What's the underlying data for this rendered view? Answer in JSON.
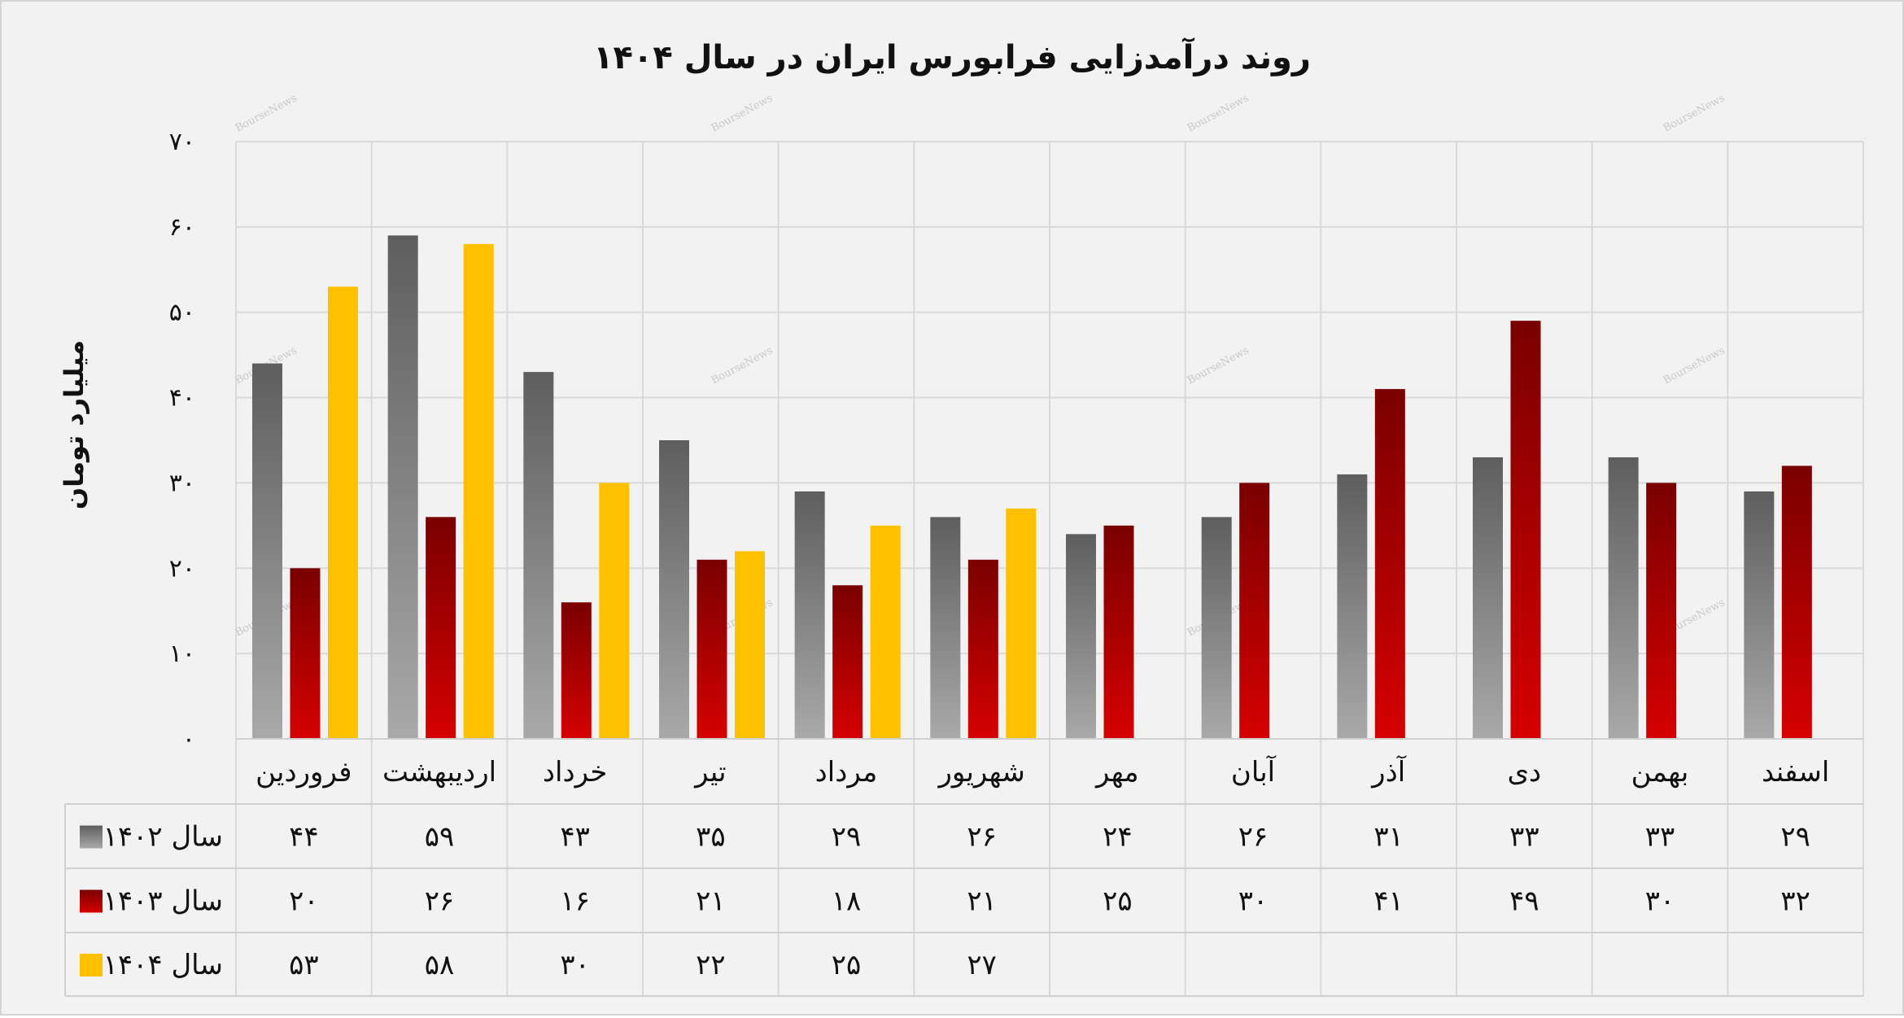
{
  "chart_data": {
    "type": "bar",
    "title": "روند درآمدزایی فرابورس ایران در سال ۱۴۰۴",
    "ylabel": "میلیارد تومان",
    "xlabel": "",
    "ylim": [
      0,
      70
    ],
    "yticks": [
      "۰",
      "۱۰",
      "۲۰",
      "۳۰",
      "۴۰",
      "۵۰",
      "۶۰",
      "۷۰"
    ],
    "categories": [
      "فروردین",
      "اردیبهشت",
      "خرداد",
      "تیر",
      "مرداد",
      "شهریور",
      "مهر",
      "آبان",
      "آذر",
      "دی",
      "بهمن",
      "اسفند"
    ],
    "series": [
      {
        "name": "سال ۱۴۰۲",
        "color": "#808080",
        "values": [
          44,
          59,
          43,
          35,
          29,
          26,
          24,
          26,
          31,
          33,
          33,
          29
        ],
        "labels": [
          "۴۴",
          "۵۹",
          "۴۳",
          "۳۵",
          "۲۹",
          "۲۶",
          "۲۴",
          "۲۶",
          "۳۱",
          "۳۳",
          "۳۳",
          "۲۹"
        ]
      },
      {
        "name": "سال ۱۴۰۳",
        "color": "#b00000",
        "values": [
          20,
          26,
          16,
          21,
          18,
          21,
          25,
          30,
          41,
          49,
          30,
          32
        ],
        "labels": [
          "۲۰",
          "۲۶",
          "۱۶",
          "۲۱",
          "۱۸",
          "۲۱",
          "۲۵",
          "۳۰",
          "۴۱",
          "۴۹",
          "۳۰",
          "۳۲"
        ]
      },
      {
        "name": "سال ۱۴۰۴",
        "color": "#ffc000",
        "values": [
          53,
          58,
          30,
          22,
          25,
          27,
          null,
          null,
          null,
          null,
          null,
          null
        ],
        "labels": [
          "۵۳",
          "۵۸",
          "۳۰",
          "۲۲",
          "۲۵",
          "۲۷",
          "",
          "",
          "",
          "",
          "",
          ""
        ]
      }
    ],
    "grid": true,
    "legend": "data-table-left",
    "watermark": "BourseNews"
  }
}
